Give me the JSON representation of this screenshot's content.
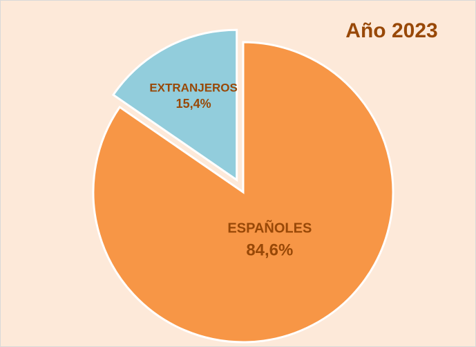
{
  "chart_data": {
    "type": "pie",
    "title": "Año 2023",
    "categories": [
      "ESPAÑOLES",
      "EXTRANJEROS"
    ],
    "values": [
      84.6,
      15.4
    ],
    "value_labels": [
      "84,6%",
      "15,4%"
    ],
    "colors": [
      "#f79646",
      "#92cddc"
    ],
    "exploded": [
      false,
      true
    ]
  }
}
